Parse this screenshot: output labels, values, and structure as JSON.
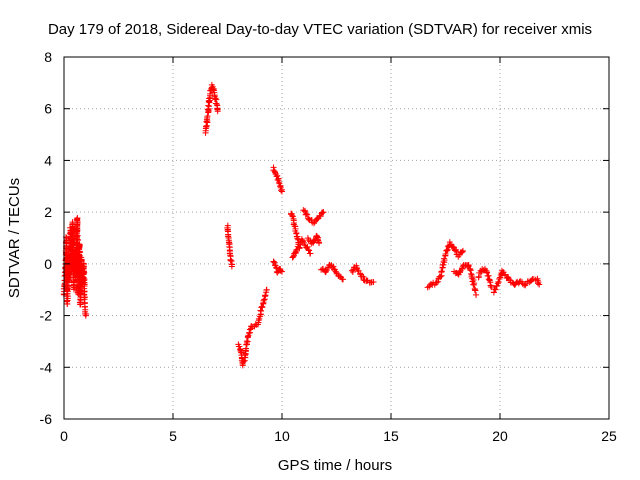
{
  "chart_data": {
    "type": "scatter",
    "title": "Day 179 of 2018, Sidereal Day-to-day VTEC variation (SDTVAR) for receiver xmis",
    "xlabel": "GPS time / hours",
    "ylabel": "SDTVAR / TECUs",
    "xlim": [
      0,
      25
    ],
    "ylim": [
      -6,
      8
    ],
    "xticks": [
      "0",
      "5",
      "10",
      "15",
      "20",
      "25"
    ],
    "yticks": [
      "-6",
      "-4",
      "-2",
      "0",
      "2",
      "4",
      "6",
      "8"
    ],
    "grid": true,
    "marker": "plus",
    "series": [
      {
        "name": "xmis",
        "color": "#ff0000",
        "segments": [
          [
            [
              0.0,
              -1.2
            ],
            [
              0.05,
              -0.4
            ],
            [
              0.1,
              0.2
            ],
            [
              0.1,
              1.0
            ],
            [
              0.15,
              -1.6
            ],
            [
              0.2,
              0.4
            ],
            [
              0.25,
              -0.6
            ],
            [
              0.3,
              1.4
            ],
            [
              0.35,
              -0.2
            ],
            [
              0.4,
              1.6
            ],
            [
              0.45,
              -1.0
            ],
            [
              0.5,
              0.5
            ],
            [
              0.55,
              -0.6
            ],
            [
              0.6,
              1.8
            ],
            [
              0.65,
              -1.2
            ],
            [
              0.7,
              0.8
            ],
            [
              0.75,
              -1.6
            ],
            [
              0.8,
              0.2
            ],
            [
              0.85,
              -0.8
            ],
            [
              0.9,
              0.0
            ],
            [
              0.95,
              -1.4
            ],
            [
              1.0,
              -2.0
            ]
          ],
          [
            [
              6.5,
              5.1
            ],
            [
              6.6,
              5.8
            ],
            [
              6.7,
              6.6
            ],
            [
              6.8,
              6.9
            ],
            [
              6.9,
              6.6
            ],
            [
              7.0,
              6.2
            ],
            [
              7.05,
              5.9
            ]
          ],
          [
            [
              7.5,
              1.5
            ],
            [
              7.55,
              1.0
            ],
            [
              7.6,
              0.6
            ],
            [
              7.65,
              0.2
            ],
            [
              7.7,
              -0.1
            ]
          ],
          [
            [
              8.0,
              -3.1
            ],
            [
              8.1,
              -3.3
            ],
            [
              8.2,
              -3.9
            ],
            [
              8.3,
              -3.6
            ],
            [
              8.4,
              -3.0
            ],
            [
              8.6,
              -2.4
            ],
            [
              8.9,
              -2.3
            ],
            [
              9.1,
              -1.6
            ],
            [
              9.3,
              -1.0
            ]
          ],
          [
            [
              9.6,
              0.1
            ],
            [
              9.7,
              -0.1
            ],
            [
              9.8,
              -0.3
            ],
            [
              9.9,
              -0.2
            ],
            [
              10.0,
              -0.3
            ]
          ],
          [
            [
              9.6,
              3.7
            ],
            [
              9.7,
              3.5
            ],
            [
              9.8,
              3.3
            ],
            [
              9.9,
              3.1
            ],
            [
              10.0,
              2.8
            ]
          ],
          [
            [
              10.4,
              2.0
            ],
            [
              10.5,
              1.8
            ],
            [
              10.6,
              1.4
            ],
            [
              10.7,
              1.0
            ],
            [
              10.8,
              0.6
            ]
          ],
          [
            [
              10.5,
              0.2
            ],
            [
              10.7,
              0.6
            ],
            [
              10.9,
              0.9
            ],
            [
              11.1,
              0.7
            ],
            [
              11.3,
              0.4
            ]
          ],
          [
            [
              11.0,
              2.1
            ],
            [
              11.2,
              1.8
            ],
            [
              11.4,
              1.6
            ],
            [
              11.6,
              1.7
            ],
            [
              11.8,
              1.9
            ],
            [
              11.9,
              2.0
            ]
          ],
          [
            [
              11.2,
              1.0
            ],
            [
              11.4,
              0.8
            ],
            [
              11.6,
              1.1
            ],
            [
              11.7,
              0.8
            ]
          ],
          [
            [
              11.8,
              -0.2
            ],
            [
              12.0,
              -0.3
            ],
            [
              12.2,
              0.0
            ],
            [
              12.4,
              -0.2
            ],
            [
              12.6,
              -0.5
            ],
            [
              12.8,
              -0.6
            ]
          ],
          [
            [
              13.2,
              -0.3
            ],
            [
              13.4,
              -0.1
            ],
            [
              13.6,
              -0.4
            ],
            [
              13.8,
              -0.6
            ],
            [
              14.0,
              -0.7
            ],
            [
              14.2,
              -0.7
            ]
          ],
          [
            [
              16.7,
              -0.9
            ],
            [
              16.9,
              -0.8
            ],
            [
              17.1,
              -0.7
            ],
            [
              17.3,
              -0.4
            ],
            [
              17.5,
              0.4
            ],
            [
              17.7,
              0.8
            ],
            [
              17.9,
              0.6
            ],
            [
              18.1,
              0.3
            ],
            [
              18.3,
              0.5
            ]
          ],
          [
            [
              17.9,
              -0.3
            ],
            [
              18.1,
              -0.4
            ],
            [
              18.3,
              -0.1
            ],
            [
              18.5,
              0.0
            ],
            [
              18.7,
              -0.4
            ],
            [
              18.9,
              -1.2
            ]
          ],
          [
            [
              19.0,
              -0.5
            ],
            [
              19.2,
              -0.2
            ],
            [
              19.4,
              -0.3
            ],
            [
              19.6,
              -0.9
            ]
          ],
          [
            [
              19.7,
              -1.1
            ],
            [
              19.9,
              -0.8
            ],
            [
              20.1,
              -0.3
            ],
            [
              20.3,
              -0.5
            ],
            [
              20.5,
              -0.7
            ],
            [
              20.7,
              -0.8
            ],
            [
              20.9,
              -0.7
            ],
            [
              21.1,
              -0.8
            ],
            [
              21.3,
              -0.7
            ],
            [
              21.5,
              -0.6
            ],
            [
              21.7,
              -0.6
            ],
            [
              21.8,
              -0.8
            ]
          ]
        ]
      }
    ]
  }
}
